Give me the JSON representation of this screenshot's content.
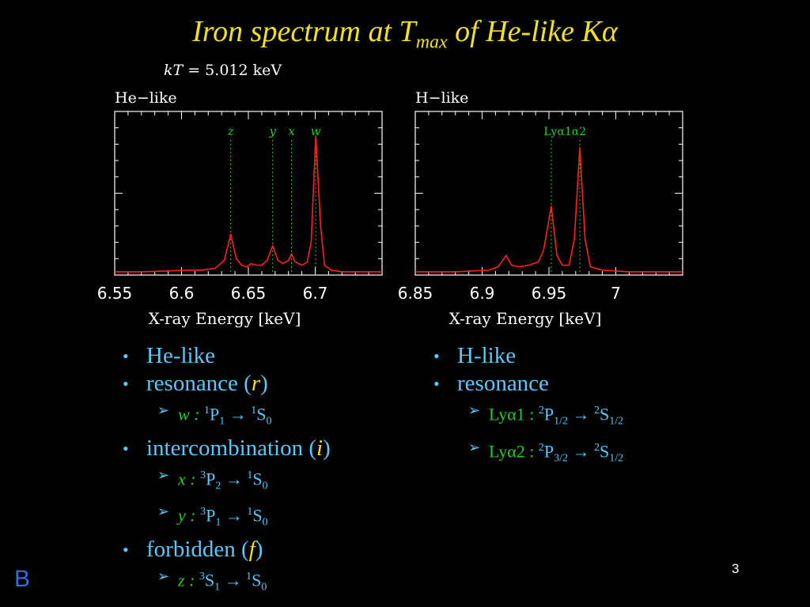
{
  "slide": {
    "title_main": "Iron spectrum at T",
    "title_sub": "max",
    "title_rest": " of He-like K",
    "title_greek": "α",
    "kt_var": "kT",
    "kt_value": " =  5.012 keV",
    "page_number": "3",
    "logo": "B"
  },
  "chart_data": [
    {
      "type": "line",
      "panel_label": "He−like",
      "xlabel": "X-ray Energy [keV]",
      "xlim": [
        6.55,
        6.75
      ],
      "ylim": [
        0,
        1.0
      ],
      "xticks": [
        "6.55",
        "6.6",
        "6.65",
        "6.7"
      ],
      "xtick_values": [
        6.55,
        6.6,
        6.65,
        6.7
      ],
      "line_markers": [
        {
          "label": "z",
          "x": 6.6368
        },
        {
          "label": "y",
          "x": 6.6682
        },
        {
          "label": "x",
          "x": 6.6823
        },
        {
          "label": "w",
          "x": 6.7004
        }
      ],
      "series": [
        {
          "x": [
            6.55,
            6.57,
            6.59,
            6.605,
            6.615,
            6.625,
            6.632,
            6.6368,
            6.641,
            6.645,
            6.649,
            6.652,
            6.656,
            6.66,
            6.664,
            6.6682,
            6.672,
            6.676,
            6.68,
            6.6823,
            6.685,
            6.69,
            6.694,
            6.697,
            6.7004,
            6.704,
            6.707,
            6.712,
            6.72,
            6.735,
            6.75
          ],
          "y": [
            0.02,
            0.02,
            0.025,
            0.03,
            0.03,
            0.04,
            0.09,
            0.25,
            0.1,
            0.06,
            0.05,
            0.07,
            0.06,
            0.06,
            0.09,
            0.18,
            0.09,
            0.07,
            0.09,
            0.13,
            0.08,
            0.06,
            0.08,
            0.2,
            0.85,
            0.3,
            0.06,
            0.03,
            0.02,
            0.02,
            0.02
          ]
        }
      ]
    },
    {
      "type": "line",
      "panel_label": "H−like",
      "xlabel": "X-ray Energy [keV]",
      "xlim": [
        6.85,
        7.05
      ],
      "ylim": [
        0,
        1.0
      ],
      "xticks": [
        "6.85",
        "6.9",
        "6.95",
        "7"
      ],
      "xtick_values": [
        6.85,
        6.9,
        6.95,
        7.0
      ],
      "line_markers": [
        {
          "label": "Lyα1α2",
          "x": 6.962
        }
      ],
      "marker_lines_x": [
        6.9517,
        6.9731
      ],
      "series": [
        {
          "x": [
            6.85,
            6.88,
            6.905,
            6.912,
            6.918,
            6.922,
            6.928,
            6.935,
            6.942,
            6.946,
            6.9517,
            6.956,
            6.96,
            6.965,
            6.969,
            6.9731,
            6.977,
            6.981,
            6.99,
            7.01,
            7.05
          ],
          "y": [
            0.02,
            0.02,
            0.03,
            0.05,
            0.12,
            0.06,
            0.05,
            0.06,
            0.08,
            0.15,
            0.42,
            0.12,
            0.06,
            0.06,
            0.22,
            0.78,
            0.22,
            0.05,
            0.03,
            0.02,
            0.02
          ]
        }
      ]
    }
  ],
  "left_list": {
    "items": [
      {
        "text": "He-like"
      },
      {
        "text_pre": "resonance (",
        "key": "r",
        "text_post": ")"
      },
      {
        "sub": true,
        "key": "w",
        "sep": " : ",
        "a_sup": "1",
        "a": "P",
        "a_sub": "1",
        "arrow": " → ",
        "b_sup": "1",
        "b": "S",
        "b_sub": "0"
      },
      {
        "text_pre": "intercombination (",
        "key": "i",
        "text_post": ")"
      },
      {
        "sub": true,
        "key": "x",
        "sep": " : ",
        "a_sup": "3",
        "a": "P",
        "a_sub": "2",
        "arrow": " → ",
        "b_sup": "1",
        "b": "S",
        "b_sub": "0"
      },
      {
        "sub": true,
        "key": "y",
        "sep": " : ",
        "a_sup": "3",
        "a": "P",
        "a_sub": "1",
        "arrow": " → ",
        "b_sup": "1",
        "b": "S",
        "b_sub": "0"
      },
      {
        "text_pre": "forbidden (",
        "key": "f",
        "text_post": ")"
      },
      {
        "sub": true,
        "key": "z",
        "sep": " : ",
        "a_sup": "3",
        "a": "S",
        "a_sub": "1",
        "arrow": " → ",
        "b_sup": "1",
        "b": "S",
        "b_sub": "0"
      }
    ]
  },
  "right_list": {
    "items": [
      {
        "text": "H-like"
      },
      {
        "text": "resonance"
      },
      {
        "sub": true,
        "key": "Lyα1",
        "sep": " : ",
        "a_sup": "2",
        "a": "P",
        "a_sub": "1/2",
        "arrow": " → ",
        "b_sup": "2",
        "b": "S",
        "b_sub": "1/2"
      },
      {
        "sub": true,
        "key": "Lyα2",
        "sep": " : ",
        "a_sup": "2",
        "a": "P",
        "a_sub": "3/2",
        "arrow": " → ",
        "b_sup": "2",
        "b": "S",
        "b_sub": "1/2"
      }
    ]
  },
  "colors": {
    "title": "#f0e020",
    "bullet_text": "#5ac8fa",
    "spectrum_line": "#ff2020",
    "marker_line": "#22cc22",
    "axes": "#ffffff"
  }
}
